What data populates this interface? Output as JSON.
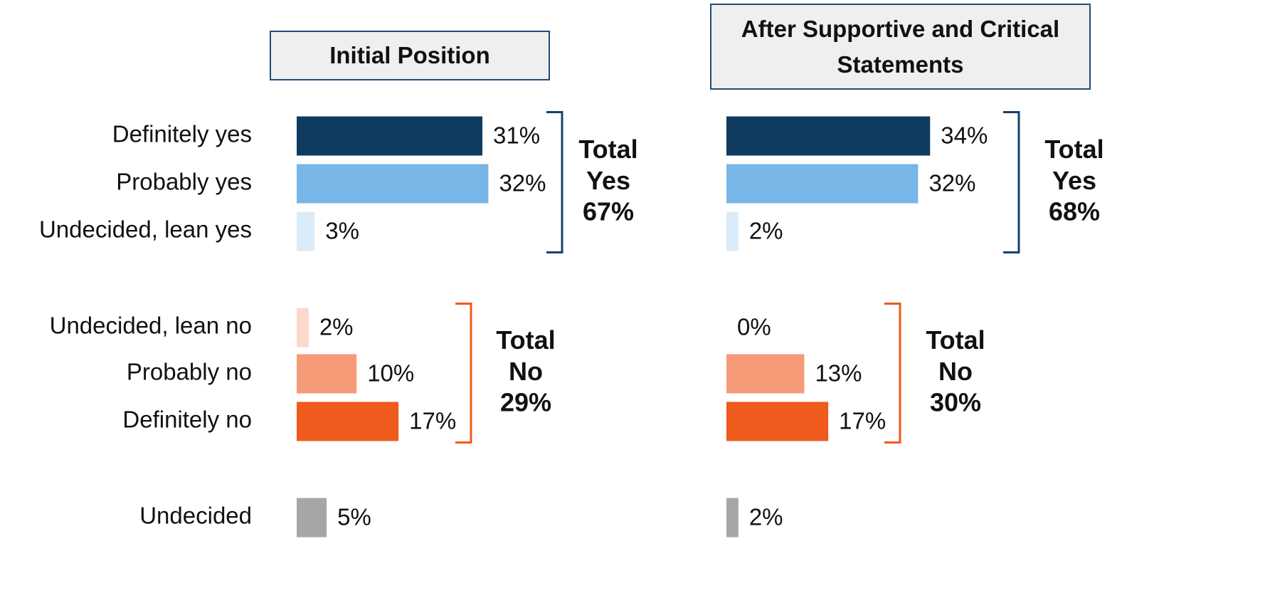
{
  "chart_data": {
    "type": "bar",
    "categories": [
      "Definitely yes",
      "Probably yes",
      "Undecided, lean yes",
      "Undecided, lean no",
      "Probably no",
      "Definitely no",
      "Undecided"
    ],
    "colors": [
      "#0f3b60",
      "#78b6e8",
      "#daebf9",
      "#fbd9cc",
      "#f69b77",
      "#ef5a1d",
      "#a6a6a6"
    ],
    "series": [
      {
        "name": "Initial Position",
        "values": [
          31,
          32,
          3,
          2,
          10,
          17,
          5
        ],
        "value_labels": [
          "31%",
          "32%",
          "3%",
          "2%",
          "10%",
          "17%",
          "5%"
        ],
        "totals": [
          {
            "text": "Total Yes",
            "value": 67,
            "value_label": "67%",
            "color": "#17416a"
          },
          {
            "text": "Total No",
            "value": 29,
            "value_label": "29%",
            "color": "#ef5a1d"
          }
        ]
      },
      {
        "name": "After Supportive and Critical Statements",
        "values": [
          34,
          32,
          2,
          0,
          13,
          17,
          2
        ],
        "value_labels": [
          "34%",
          "32%",
          "2%",
          "0%",
          "13%",
          "17%",
          "2%"
        ],
        "totals": [
          {
            "text": "Total Yes",
            "value": 68,
            "value_label": "68%",
            "color": "#17416a"
          },
          {
            "text": "Total No",
            "value": 30,
            "value_label": "30%",
            "color": "#ef5a1d"
          }
        ]
      }
    ]
  }
}
